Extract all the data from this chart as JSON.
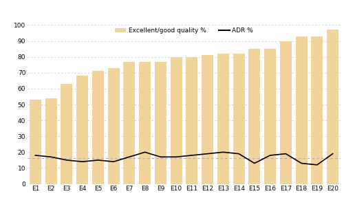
{
  "categories": [
    "E1",
    "E2",
    "E3",
    "E4",
    "E5",
    "E6",
    "E7",
    "E8",
    "E9",
    "E10",
    "E11",
    "E12",
    "E13",
    "E14",
    "E15",
    "E16",
    "E17",
    "E18",
    "E19",
    "E20"
  ],
  "bar_values": [
    53,
    54,
    63,
    68,
    71,
    73,
    77,
    77,
    77,
    80,
    80,
    81,
    82,
    82,
    85,
    85,
    90,
    93,
    93,
    97
  ],
  "adr_values": [
    18,
    17,
    15,
    14,
    15,
    14,
    17,
    20,
    17,
    17,
    18,
    19,
    20,
    19,
    13,
    18,
    19,
    13,
    12,
    19
  ],
  "mean_adr": 16.3,
  "bar_color": "#F0D49A",
  "bar_edgecolor": "none",
  "line_color": "#000000",
  "dotted_line_color": "#aaaaaa",
  "background_color": "#ffffff",
  "ylim": [
    0,
    100
  ],
  "yticks": [
    0,
    10,
    20,
    30,
    40,
    50,
    60,
    70,
    80,
    90,
    100
  ],
  "legend_bar_label": "Excellent/good quality %",
  "legend_line_label": "ADR %",
  "grid_color": "#d0d0d0",
  "bar_width": 0.75
}
